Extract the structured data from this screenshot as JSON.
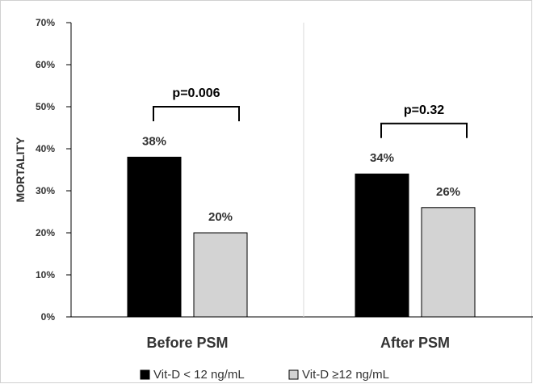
{
  "chart_data": {
    "type": "bar",
    "title": "",
    "xlabel": "",
    "ylabel": "MORTALITY",
    "ylim": [
      0,
      70
    ],
    "yticks": [
      "0%",
      "10%",
      "20%",
      "30%",
      "40%",
      "50%",
      "60%",
      "70%"
    ],
    "categories": [
      "Before PSM",
      "After PSM"
    ],
    "series": [
      {
        "name": "Vit-D < 12 ng/mL",
        "values": [
          38,
          34
        ],
        "labels": [
          "38%",
          "34%"
        ],
        "color": "#000000"
      },
      {
        "name": "Vit-D ≥12 ng/mL",
        "values": [
          20,
          26
        ],
        "labels": [
          "20%",
          "26%"
        ],
        "color": "#d3d3d3"
      }
    ],
    "annotations": [
      {
        "category": "Before PSM",
        "text": "p=0.006",
        "bracket_height": 50
      },
      {
        "category": "After PSM",
        "text": "p=0.32",
        "bracket_height": 46
      }
    ],
    "legend_position": "bottom-center",
    "grid": false
  }
}
